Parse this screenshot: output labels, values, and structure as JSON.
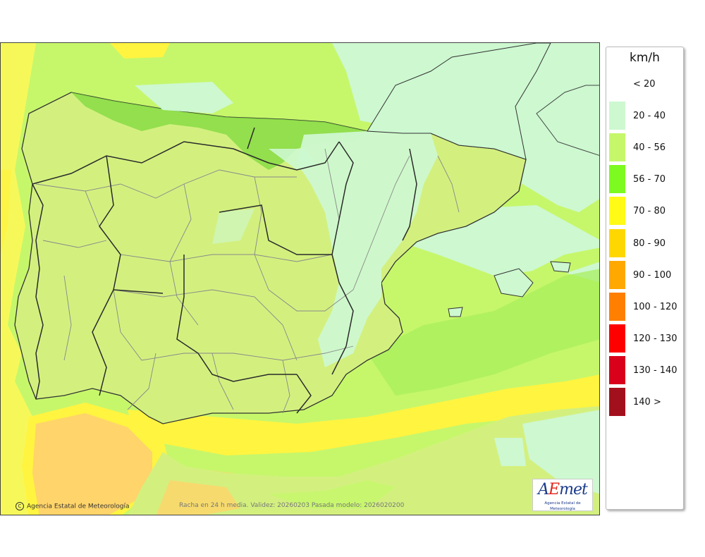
{
  "map": {
    "credit": "Agencia Estatal de Meteorología",
    "copyright_symbol": "C",
    "validity": "Racha en 24 h media. Validez: 20260203 Pasada modelo: 2026020200",
    "logo": {
      "text_a": "A",
      "text_e": "E",
      "text_met": "met",
      "subtitle": "Agencia Estatal de Meteorología"
    },
    "colors": {
      "sea_base": "#c6f76b",
      "land_base": "#d3f07f",
      "lt_20": "#ffffff",
      "c20_40": "#cdf8d0",
      "c40_56": "#c6f76b",
      "c56_70": "#7dd93c",
      "c70_80": "#fff440",
      "c80_90": "#ffd52b",
      "border": "#333333"
    }
  },
  "legend": {
    "unit": "km/h",
    "items": [
      {
        "label": "< 20",
        "color": ""
      },
      {
        "label": "20 - 40",
        "color": "#cdf8d0"
      },
      {
        "label": "40 - 56",
        "color": "#c6f76b"
      },
      {
        "label": "56 - 70",
        "color": "#7dfa1f"
      },
      {
        "label": "70 - 80",
        "color": "#fffa16"
      },
      {
        "label": "80 - 90",
        "color": "#ffd700"
      },
      {
        "label": "90 - 100",
        "color": "#ffa800"
      },
      {
        "label": "100 - 120",
        "color": "#ff7f00"
      },
      {
        "label": "120 - 130",
        "color": "#ff0000"
      },
      {
        "label": "130 - 140",
        "color": "#d9001b"
      },
      {
        "label": "140 >",
        "color": "#a3101d"
      }
    ]
  }
}
